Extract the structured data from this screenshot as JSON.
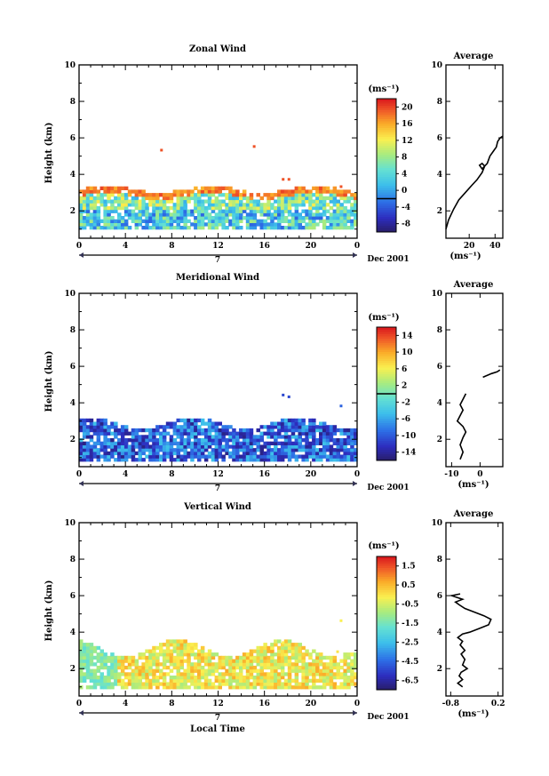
{
  "chart_data": [
    {
      "type": "heatmap",
      "title": "Zonal Wind",
      "ylabel": "Height (km)",
      "xlabel": "",
      "xlim": [
        0,
        24
      ],
      "ylim": [
        0.5,
        10
      ],
      "xticks": [
        "0",
        "4",
        "8",
        "12",
        "16",
        "20",
        "0"
      ],
      "yticks": [
        "2",
        "4",
        "6",
        "8",
        "10"
      ],
      "date_marker": "7",
      "date_label": "Dec 2001",
      "colorbar": {
        "unit": "(ms⁻¹)",
        "ticks": [
          "-8",
          "-4",
          "0",
          "4",
          "8",
          "12",
          "16",
          "20"
        ],
        "range": [
          -10,
          22
        ],
        "contour_at": "0"
      },
      "note": "data coverage mostly 1-3 km; values range light green to blue (about -2 to 8 m/s) with an orange/red top fringe",
      "average": {
        "title": "Average",
        "xlabel": "(ms⁻¹)",
        "xticks": [
          "20",
          "40"
        ],
        "xlim": [
          2,
          46
        ],
        "yticks": [
          "2",
          "4",
          "6",
          "8",
          "10"
        ],
        "profile": [
          [
            2,
            1.0
          ],
          [
            4,
            1.5
          ],
          [
            8,
            2.1
          ],
          [
            12,
            2.6
          ],
          [
            17,
            3.0
          ],
          [
            22,
            3.4
          ],
          [
            26,
            3.7
          ],
          [
            30,
            4.1
          ],
          [
            32,
            4.45
          ],
          [
            30,
            4.6
          ],
          [
            28,
            4.5
          ],
          [
            30,
            4.3
          ],
          [
            34,
            4.6
          ],
          [
            36,
            5.0
          ],
          [
            39,
            5.3
          ],
          [
            41,
            5.5
          ],
          [
            42,
            5.8
          ],
          [
            44,
            6.0
          ],
          [
            46,
            6.1
          ]
        ]
      }
    },
    {
      "type": "heatmap",
      "title": "Meridional Wind",
      "ylabel": "Height (km)",
      "xlabel": "",
      "xlim": [
        0,
        24
      ],
      "ylim": [
        0.5,
        10
      ],
      "xticks": [
        "0",
        "4",
        "8",
        "12",
        "16",
        "20",
        "0"
      ],
      "yticks": [
        "2",
        "4",
        "6",
        "8",
        "10"
      ],
      "date_marker": "7",
      "date_label": "Dec 2001",
      "colorbar": {
        "unit": "(ms⁻¹)",
        "ticks": [
          "-14",
          "-10",
          "-6",
          "-2",
          "2",
          "6",
          "10",
          "14"
        ],
        "range": [
          -16,
          16
        ],
        "contour_at": "0"
      },
      "note": "mostly blue values (about -14 to -6 m/s) between 1 and 3 km",
      "average": {
        "title": "Average",
        "xlabel": "(ms⁻¹)",
        "xticks": [
          "-10",
          "0"
        ],
        "xlim": [
          -12,
          8
        ],
        "yticks": [
          "2",
          "4",
          "6",
          "8",
          "10"
        ],
        "profile": [
          [
            -7,
            0.9
          ],
          [
            -6,
            1.3
          ],
          [
            -7,
            1.7
          ],
          [
            -6,
            2.1
          ],
          [
            -5,
            2.4
          ],
          [
            -6,
            2.7
          ],
          [
            -8,
            3.0
          ],
          [
            -7,
            3.3
          ],
          [
            -6,
            3.6
          ],
          [
            -7,
            3.9
          ],
          [
            -6,
            4.2
          ],
          [
            -5,
            4.5
          ]
        ],
        "profile_upper": [
          [
            1,
            5.4
          ],
          [
            4,
            5.6
          ],
          [
            6,
            5.7
          ],
          [
            7,
            5.8
          ]
        ]
      }
    },
    {
      "type": "heatmap",
      "title": "Vertical Wind",
      "ylabel": "Height (km)",
      "xlabel": "Local Time",
      "xlim": [
        0,
        24
      ],
      "ylim": [
        0.5,
        10
      ],
      "xticks": [
        "0",
        "4",
        "8",
        "12",
        "16",
        "20",
        "0"
      ],
      "yticks": [
        "2",
        "4",
        "6",
        "8",
        "10"
      ],
      "date_marker": "7",
      "date_label": "Dec 2001",
      "colorbar": {
        "unit": "(ms⁻¹)",
        "ticks": [
          "-6.5",
          "-4.5",
          "-2.5",
          "-1.5",
          "-0.5",
          "0.5",
          "1.5"
        ],
        "range": [
          -7,
          2
        ],
        "contour_at": ""
      },
      "note": "mostly yellow/orange values (about -0.5 to 1 m/s) between 1 and 3.5 km, light green/cyan near hours 0-3",
      "average": {
        "title": "Average",
        "xlabel": "(ms⁻¹)",
        "xticks": [
          "-0.8",
          "0.2"
        ],
        "xlim": [
          -0.9,
          0.3
        ],
        "yticks": [
          "2",
          "4",
          "6",
          "8",
          "10"
        ],
        "profile": [
          [
            -0.55,
            1.0
          ],
          [
            -0.65,
            1.2
          ],
          [
            -0.55,
            1.4
          ],
          [
            -0.62,
            1.6
          ],
          [
            -0.58,
            1.8
          ],
          [
            -0.45,
            2.0
          ],
          [
            -0.55,
            2.2
          ],
          [
            -0.5,
            2.5
          ],
          [
            -0.58,
            2.8
          ],
          [
            -0.5,
            3.0
          ],
          [
            -0.6,
            3.3
          ],
          [
            -0.55,
            3.5
          ],
          [
            -0.65,
            3.7
          ],
          [
            -0.55,
            3.9
          ],
          [
            -0.4,
            4.0
          ],
          [
            -0.2,
            4.2
          ],
          [
            0.0,
            4.4
          ],
          [
            0.05,
            4.7
          ],
          [
            -0.1,
            4.9
          ],
          [
            -0.3,
            5.1
          ],
          [
            -0.5,
            5.3
          ],
          [
            -0.62,
            5.5
          ],
          [
            -0.7,
            5.65
          ],
          [
            -0.55,
            5.8
          ],
          [
            -0.78,
            6.0
          ],
          [
            -0.6,
            6.1
          ]
        ]
      }
    }
  ]
}
